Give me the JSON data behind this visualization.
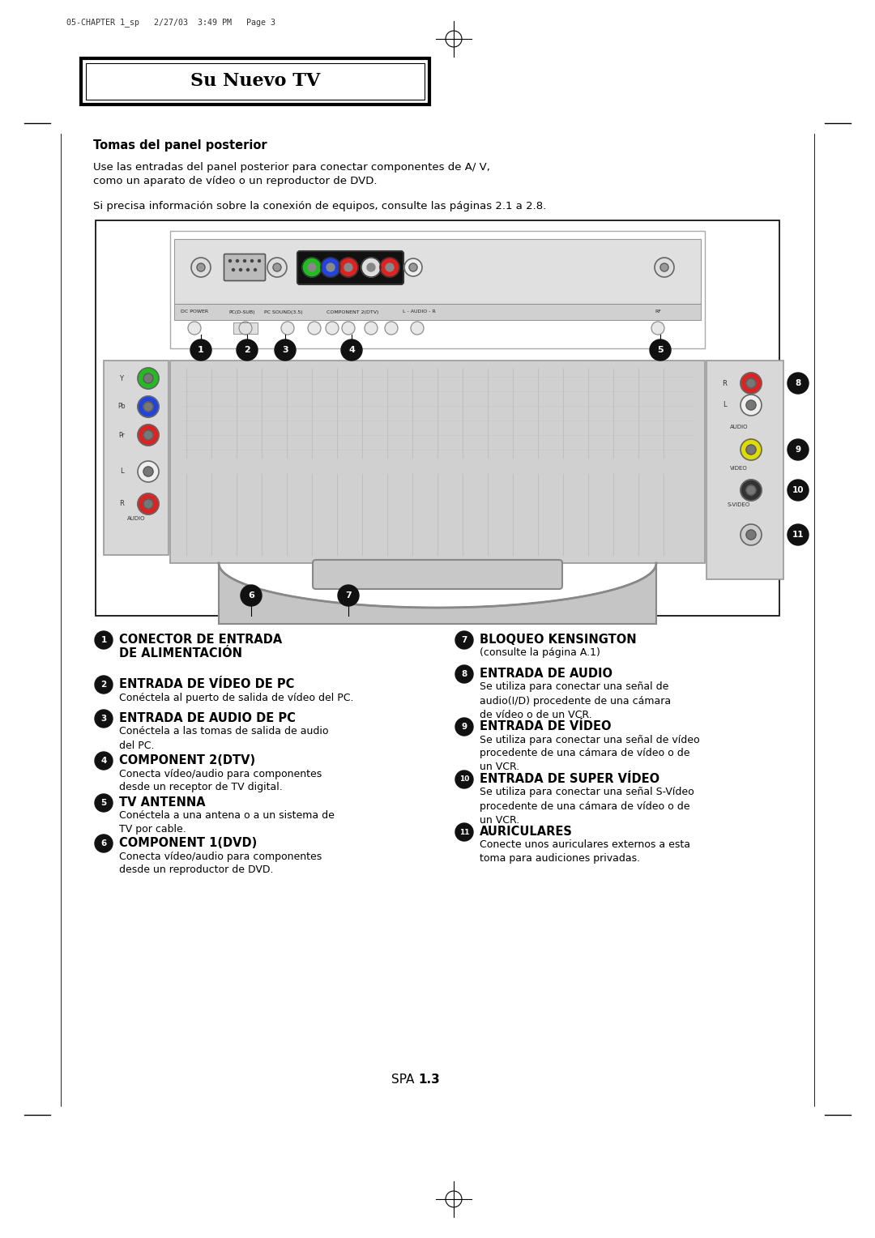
{
  "header_text": "05-CHAPTER 1_sp   2/27/03  3:49 PM   Page 3",
  "title": "Su Nuevo TV",
  "section_heading": "Tomas del panel posterior",
  "intro_text1": "Use las entradas del panel posterior para conectar componentes de A/ V,",
  "intro_text1b": "como un aparato de vídeo o un reproductor de DVD.",
  "intro_text2": "Si precisa información sobre la conexión de equipos, consulte las páginas 2.1 a 2.8.",
  "items_left": [
    {
      "num": "1",
      "title": "CONECTOR DE ENTRADA\nDE ALIMENTACIÓN",
      "desc": ""
    },
    {
      "num": "2",
      "title": "ENTRADA DE VÍDEO DE PC",
      "desc": "Conéctela al puerto de salida de vídeo del PC."
    },
    {
      "num": "3",
      "title": "ENTRADA DE AUDIO DE PC",
      "desc": "Conéctela a las tomas de salida de audio\ndel PC."
    },
    {
      "num": "4",
      "title": "COMPONENT 2(DTV)",
      "desc": "Conecta vídeo/audio para componentes\ndesde un receptor de TV digital."
    },
    {
      "num": "5",
      "title": "TV ANTENNA",
      "desc": "Conéctela a una antena o a un sistema de\nTV por cable."
    },
    {
      "num": "6",
      "title": "COMPONENT 1(DVD)",
      "desc": "Conecta vídeo/audio para componentes\ndesde un reproductor de DVD."
    }
  ],
  "items_right": [
    {
      "num": "7",
      "title": "BLOQUEO KENSINGTON",
      "desc": "(consulte la página A.1)"
    },
    {
      "num": "8",
      "title": "ENTRADA DE AUDIO",
      "desc": "Se utiliza para conectar una señal de\naudio(I/D) procedente de una cámara\nde vídeo o de un VCR."
    },
    {
      "num": "9",
      "title": "ENTRADA DE VÍDEO",
      "desc": "Se utiliza para conectar una señal de vídeo\nprocedente de una cámara de vídeo o de\nun VCR."
    },
    {
      "num": "10",
      "title": "ENTRADA DE SUPER VÍDEO",
      "desc": "Se utiliza para conectar una señal S-Vídeo\nprocedente de una cámara de vídeo o de\nun VCR."
    },
    {
      "num": "11",
      "title": "AURICULARES",
      "desc": "Conecte unos auriculares externos a esta\ntoma para audiciones privadas."
    }
  ],
  "page_label": "SPA 1.3",
  "bg_color": "#ffffff"
}
